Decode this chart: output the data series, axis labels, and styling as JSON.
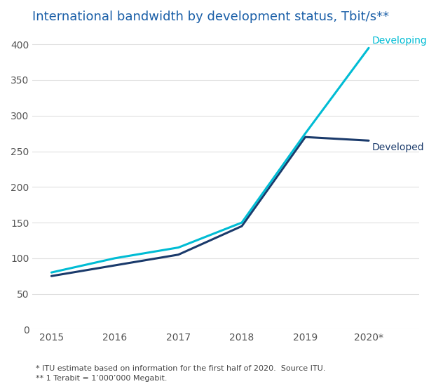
{
  "title": "International bandwidth by development status, Tbit/s**",
  "x_labels": [
    "2015",
    "2016",
    "2017",
    "2018",
    "2019",
    "2020*"
  ],
  "x_values": [
    0,
    1,
    2,
    3,
    4,
    5
  ],
  "developing": [
    80,
    100,
    115,
    150,
    275,
    395
  ],
  "developed": [
    75,
    90,
    105,
    145,
    270,
    265
  ],
  "developing_color": "#00BCD4",
  "developed_color": "#1A3A6B",
  "developing_label": "Developing",
  "developed_label": "Developed",
  "ylim": [
    0,
    420
  ],
  "yticks": [
    0,
    50,
    100,
    150,
    200,
    250,
    300,
    350,
    400
  ],
  "footnote1": "* ITU estimate based on information for the first half of 2020.  Source ITU.",
  "footnote2": "** 1 Terabit = 1’000’000 Megabit.",
  "background_color": "#ffffff",
  "title_color": "#1a5fa8",
  "tick_color": "#555555",
  "linewidth": 2.2,
  "title_fontsize": 13,
  "annotation_fontsize": 10,
  "footnote_fontsize": 8,
  "tick_fontsize": 10
}
